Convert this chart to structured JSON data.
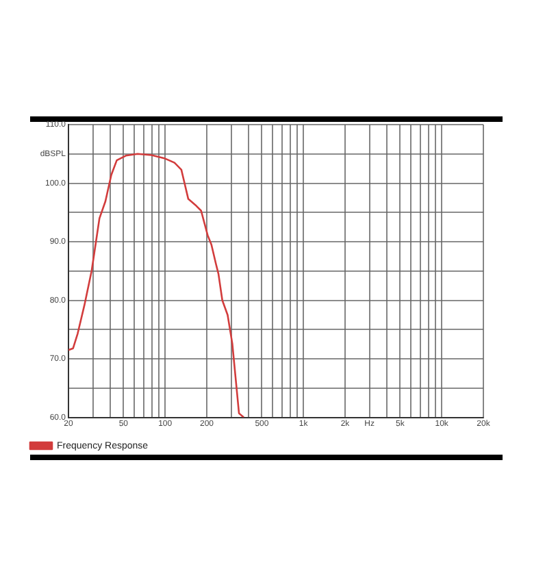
{
  "chart_data": {
    "type": "line",
    "log": "x",
    "grid": true,
    "legend": "bottom left",
    "marker": "none",
    "line_style": "solid",
    "xlim": [
      20,
      20000
    ],
    "xticks": [
      20,
      {
        "value": 30,
        "label": null
      },
      {
        "value": 40,
        "label": null
      },
      50,
      {
        "value": 60,
        "label": null
      },
      {
        "value": 70,
        "label": null
      },
      {
        "value": 80,
        "label": null
      },
      {
        "value": 90,
        "label": null
      },
      100,
      200,
      {
        "value": 300,
        "label": null
      },
      {
        "value": 400,
        "label": null
      },
      500,
      {
        "value": 600,
        "label": null
      },
      {
        "value": 700,
        "label": null
      },
      {
        "value": 800,
        "label": null
      },
      {
        "value": 900,
        "label": null
      },
      {
        "value": 1000,
        "label": "1k"
      },
      {
        "value": 2000,
        "label": "2k"
      },
      {
        "value": 3000,
        "label": "Hz"
      },
      {
        "value": 4000,
        "label": null
      },
      {
        "value": 5000,
        "label": "5k"
      },
      {
        "value": 6000,
        "label": null
      },
      {
        "value": 7000,
        "label": null
      },
      {
        "value": 8000,
        "label": null
      },
      {
        "value": 9000,
        "label": null
      },
      {
        "value": 10000,
        "label": "10k"
      },
      {
        "value": 20000,
        "label": "20k"
      }
    ],
    "ylim": [
      60,
      110
    ],
    "yticks": [
      {
        "value": 60,
        "label": "60.0"
      },
      {
        "value": 65,
        "label": null
      },
      {
        "value": 70,
        "label": "70.0"
      },
      {
        "value": 75,
        "label": null
      },
      {
        "value": 80,
        "label": "80.0"
      },
      {
        "value": 85,
        "label": null
      },
      {
        "value": 90,
        "label": "90.0"
      },
      {
        "value": 95,
        "label": null
      },
      {
        "value": 100,
        "label": "100.0"
      },
      {
        "value": 105,
        "label": "dBSPL"
      },
      {
        "value": 110,
        "label": "110.0"
      }
    ],
    "series": [
      {
        "name": "Frequency Response",
        "color": "#d23c3c",
        "x": [
          20,
          21.6,
          23.3,
          26.1,
          29.4,
          33.5,
          37,
          40.8,
          44.7,
          52,
          63.2,
          79.6,
          100,
          116.8,
          131,
          147,
          165,
          182,
          203,
          216,
          233,
          243,
          259,
          283,
          306,
          323,
          342,
          370
        ],
        "values": [
          71.5,
          71.8,
          74.3,
          79.2,
          85,
          94,
          96.9,
          101.4,
          103.9,
          104.7,
          105,
          104.8,
          104.2,
          103.5,
          102.3,
          97.3,
          96.3,
          95.3,
          91.1,
          89.5,
          86.2,
          84.5,
          80,
          77.5,
          72.6,
          66.8,
          60.7,
          60
        ]
      }
    ]
  }
}
